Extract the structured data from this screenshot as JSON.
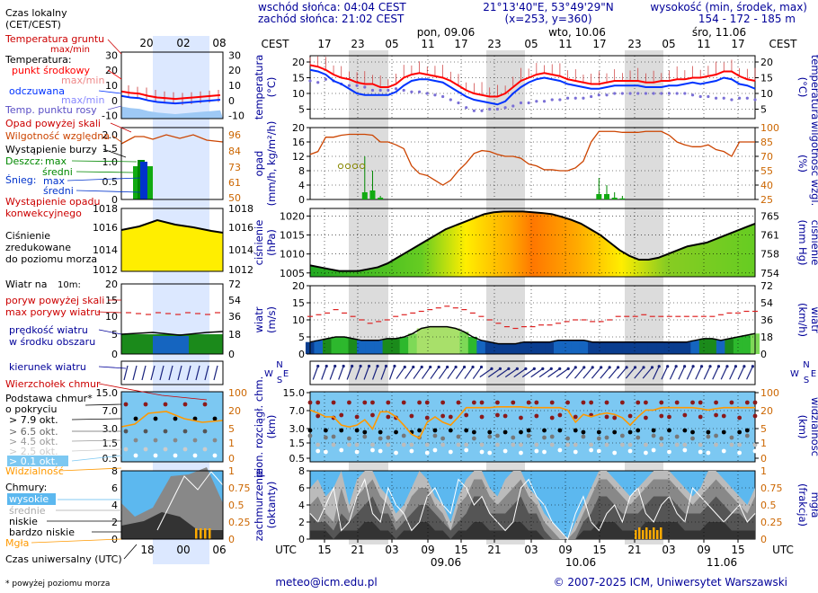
{
  "header": {
    "sunrise": "wschód słońca: 04:04 CEST",
    "sunset": "zachód słońca: 21:02 CEST",
    "coords": "21°13'40\"E, 53°49'29\"N",
    "grid": "(x=253, y=360)",
    "elevation_title": "wysokość (min, środek, max)",
    "elevation_values": "154 - 172 - 185 m",
    "days": [
      "pon, 09.06",
      "wto, 10.06",
      "śro, 11.06"
    ],
    "cest_label": "CEST",
    "utc_label": "UTC",
    "cest_hours": [
      "17",
      "23",
      "05",
      "11",
      "17",
      "23",
      "05",
      "11",
      "17",
      "23",
      "05",
      "11",
      "17"
    ],
    "utc_hours": [
      "15",
      "21",
      "03",
      "09",
      "15",
      "21",
      "03",
      "09",
      "15",
      "21",
      "03",
      "09",
      "15"
    ],
    "utc_dates": [
      "09.06",
      "10.06",
      "11.06"
    ]
  },
  "legend": {
    "local_time": "Czas lokalny",
    "local_time_sub": "(CET/CEST)",
    "local_hours": [
      "20",
      "02",
      "08"
    ],
    "utc_hours": [
      "18",
      "00",
      "06"
    ],
    "ground_temp": "Temperatura gruntu",
    "ground_temp_sub": "max/min",
    "temperature": "Temperatura:",
    "center_point": "punkt środkowy",
    "max_min_1": "max/min",
    "perceived": "odczuwana",
    "max_min_2": "max/min",
    "dew_point": "Temp. punktu rosy",
    "precip_scale": "Opad powyżej skali",
    "humidity": "Wilgotność względna",
    "storm": "Wystąpienie burzy",
    "rain": "Deszcz:",
    "rain_max": "max",
    "rain_mid": "średni",
    "snow": "Śnieg:",
    "snow_max": "max",
    "snow_mid": "średni",
    "precip_occurrence": "Wystąpienie opadu",
    "precip_occurrence2": "konwekcyjnego",
    "pressure1": "Ciśnienie",
    "pressure2": "zredukowane",
    "pressure3": "do poziomu morza",
    "wind": "Wiatr na",
    "wind_height": "10m:",
    "gusts_scale": "poryw powyżej skali",
    "gusts": "max porywy wiatru",
    "wind_speed": "prędkość wiatru",
    "wind_speed2": "w środku obszaru",
    "wind_dir": "kierunek wiatru",
    "cloud_top": "Wierzchołek chmur",
    "cloud_base": "Podstawa chmur*",
    "cloud_base2": "o pokryciu",
    "oct79": "> 7.9 okt.",
    "oct65": "> 6.5 okt.",
    "oct45": "> 4.5 okt.",
    "oct25": "> 2.5 okt.",
    "oct01": "> 0.1 okt.",
    "visibility": "Widzialność",
    "clouds": "Chmury:",
    "high": "wysokie",
    "mid": "średnie",
    "low": "niskie",
    "vlow": "bardzo niskie",
    "fog": "Mgła",
    "utc_time": "Czas uniwersalny (UTC)",
    "footnote": "* powyżej poziomu morza"
  },
  "axis_labels": {
    "temp_l": "temperatura",
    "temp_lu": "(°C)",
    "temp_r": "(°C)",
    "temp_ru": "temperatura",
    "precip_l": "opad",
    "precip_lu": "(mm/h, kg/m²/h)",
    "precip_r": "(%)",
    "precip_ru": "wilgotność wzgl.",
    "press_l": "ciśnienie",
    "press_lu": "(hPa)",
    "press_r": "(mm Hg)",
    "press_ru": "ciśnienie",
    "wind_l": "wiatr",
    "wind_lu": "(m/s)",
    "wind_r": "(km/h)",
    "wind_ru": "wiatr",
    "cbase_l": "pion. rozciągł. chm.",
    "cbase_lu": "(km)",
    "cbase_r": "(km)",
    "cbase_ru": "widzialność",
    "cloud_l": "zachmurzenie",
    "cloud_lu": "(oktanty)",
    "cloud_r": "(frakcja)",
    "cloud_ru": "mgła",
    "dir_n": "N",
    "dir_w": "W",
    "dir_s": "S",
    "dir_e": "E"
  },
  "footer": {
    "email": "meteo@icm.edu.pl",
    "copyright": "© 2007-2025 ICM, Uniwersytet Warszawski"
  },
  "colors": {
    "axis_blue": "#000099",
    "temp_red": "#ff0000",
    "perceived_blue": "#0033ff",
    "humidity": "#cc4400",
    "orange_axis": "#cc6600",
    "night": "#dcdcdc",
    "sky": "#6ec6ff"
  },
  "chart_data": [
    {
      "type": "line",
      "title": "temperatura",
      "ylim": [
        2,
        22
      ],
      "y_ticks_left": [
        5,
        10,
        15,
        20
      ],
      "y_ticks_right": [
        5,
        10,
        15,
        20
      ],
      "series": [
        {
          "name": "punkt środkowy",
          "values": [
            19,
            18.5,
            17.5,
            16,
            15,
            14.5,
            13.5,
            13,
            13,
            12,
            12,
            13,
            15,
            16,
            16.5,
            16,
            15.5,
            15,
            14,
            12.5,
            11,
            10,
            9.5,
            9,
            9,
            10,
            12,
            14,
            15,
            16,
            16.5,
            16,
            15.5,
            14.5,
            14,
            13.5,
            13,
            13,
            13.5,
            14,
            14,
            14,
            14,
            13.5,
            13.5,
            14,
            14,
            14.5,
            14.5,
            15,
            15,
            15.5,
            16,
            17,
            17,
            15.5,
            14.5,
            14
          ]
        },
        {
          "name": "odczuwana",
          "values": [
            17.5,
            17,
            16,
            14,
            13,
            11.5,
            10,
            9.5,
            9.5,
            9.5,
            9.5,
            10.5,
            12.5,
            14,
            14.5,
            14.5,
            14,
            13.5,
            12,
            10.5,
            9,
            8,
            7.5,
            7,
            6.5,
            7.5,
            10,
            12,
            13.5,
            14.5,
            15,
            14.5,
            14,
            13,
            12.5,
            12,
            11.5,
            11.5,
            12,
            12.5,
            12.5,
            12.5,
            12.5,
            12,
            12,
            12,
            12.5,
            12.5,
            13,
            13.5,
            13,
            13.5,
            14,
            15,
            14.5,
            13,
            12.5,
            11.5
          ]
        },
        {
          "name": "Temp. punktu rosy",
          "values": [
            14,
            13.5,
            14.5,
            14,
            13,
            12.5,
            12.5,
            12,
            11,
            11,
            11,
            11.5,
            11,
            10.5,
            10.5,
            10,
            9.5,
            9,
            8,
            7,
            5.5,
            4.5,
            4.5,
            5,
            5,
            5.5,
            6,
            7,
            7,
            7.5,
            7.5,
            8,
            8,
            8.5,
            8.5,
            8.5,
            9,
            9.5,
            9.5,
            10,
            10,
            10,
            10,
            10,
            10,
            10,
            10,
            10,
            10,
            9.5,
            9,
            9,
            8.5,
            8.5,
            8,
            8.5,
            8.5,
            8
          ]
        }
      ]
    },
    {
      "type": "bar",
      "title": "opad",
      "ylim": [
        0,
        20
      ],
      "y_ticks_left": [
        0,
        4,
        8,
        12,
        16,
        20
      ],
      "y_ticks_right": [
        25,
        40,
        55,
        70,
        85,
        100
      ],
      "series": [
        {
          "name": "Wilgotność względna",
          "values": [
            72,
            75,
            90,
            90,
            92,
            93,
            93,
            93,
            92,
            85,
            85,
            82,
            78,
            60,
            52,
            50,
            45,
            40,
            45,
            55,
            63,
            73,
            76,
            75,
            72,
            70,
            70,
            68,
            62,
            60,
            56,
            56,
            55,
            55,
            58,
            65,
            85,
            96,
            96,
            96,
            95,
            95,
            95,
            96,
            96,
            96,
            92,
            85,
            82,
            80,
            80,
            82,
            77,
            75,
            70,
            85,
            85,
            85
          ]
        },
        {
          "name": "Deszcz max",
          "values": [
            0,
            0,
            0,
            0,
            0,
            0,
            0,
            12,
            8,
            1,
            0,
            0,
            0,
            0,
            0,
            0,
            0,
            0,
            0,
            0,
            0,
            0,
            0,
            0,
            0,
            0,
            0,
            0,
            0,
            0,
            0,
            0,
            0,
            0,
            0,
            0,
            0,
            6,
            4,
            2,
            1,
            0,
            0,
            0,
            0,
            0,
            0,
            0,
            0,
            0,
            0,
            0,
            0,
            0,
            0,
            0,
            0,
            0
          ]
        },
        {
          "name": "Deszcz średni",
          "values": [
            0,
            0,
            0,
            0,
            0,
            0,
            0,
            2,
            2.5,
            0.5,
            0,
            0,
            0,
            0,
            0,
            0,
            0,
            0,
            0,
            0,
            0,
            0,
            0,
            0,
            0,
            0,
            0,
            0,
            0,
            0,
            0,
            0,
            0,
            0,
            0,
            0,
            0,
            1.5,
            1.5,
            0.5,
            0.3,
            0,
            0,
            0,
            0,
            0,
            0,
            0,
            0,
            0,
            0,
            0,
            0,
            0,
            0,
            0,
            0,
            0
          ]
        }
      ]
    },
    {
      "type": "area",
      "title": "ciśnienie",
      "ylim": [
        1004,
        1022
      ],
      "y_ticks_left": [
        1005,
        1010,
        1015,
        1020
      ],
      "y_ticks_right": [
        754,
        758,
        761,
        765
      ],
      "values": [
        1007,
        1006.5,
        1006,
        1005.5,
        1005.5,
        1005.5,
        1006,
        1006.5,
        1007.5,
        1009,
        1010.5,
        1012,
        1013.5,
        1015,
        1016.5,
        1017.5,
        1018.5,
        1019.5,
        1020.5,
        1021,
        1021.2,
        1021.2,
        1021.2,
        1021,
        1020.8,
        1020.5,
        1019.8,
        1019,
        1018,
        1016.5,
        1015,
        1013,
        1011,
        1009.5,
        1008.5,
        1008.5,
        1009,
        1010,
        1011,
        1012,
        1012.5,
        1013,
        1014,
        1015,
        1016,
        1017,
        1018
      ]
    },
    {
      "type": "area",
      "title": "wiatr",
      "ylim": [
        0,
        20
      ],
      "y_ticks_left": [
        0,
        5,
        10,
        15,
        20
      ],
      "y_ticks_right": [
        0,
        18,
        36,
        54,
        72
      ],
      "series": [
        {
          "name": "prędkość wiatru",
          "values": [
            3.5,
            4,
            4.5,
            5,
            5,
            4.5,
            4,
            4,
            4,
            4.5,
            4.5,
            5,
            6,
            7.5,
            8,
            8,
            8,
            7.5,
            6.5,
            5,
            4,
            3.5,
            3,
            3,
            3,
            3.5,
            3.5,
            3.5,
            3.5,
            4,
            4,
            4,
            4,
            3.5,
            3.5,
            3.5,
            3.5,
            3.5,
            3.5,
            3.5,
            3.5,
            3.5,
            3.5,
            3.5,
            3.5,
            4,
            4.5,
            4.5,
            4,
            4.5,
            5,
            5.5,
            6
          ]
        },
        {
          "name": "max porywy wiatru",
          "values": [
            11,
            11.5,
            12,
            13,
            12,
            11,
            10,
            9,
            9.5,
            10,
            11,
            11.5,
            12,
            12.5,
            13,
            13.5,
            14,
            13.5,
            13,
            12,
            11,
            10,
            9,
            8,
            7.5,
            8,
            8,
            8.5,
            8.5,
            9,
            9.5,
            10,
            10,
            9.5,
            9.5,
            10,
            11,
            11,
            11,
            11.5,
            11,
            11,
            11,
            11,
            11,
            11,
            11,
            11,
            11.5,
            12,
            12,
            12.5,
            12.5
          ]
        }
      ]
    },
    {
      "type": "line",
      "title": "pion. rozciągł. chm.",
      "ylim": [
        0,
        15
      ],
      "y_ticks_left": [
        "0.5",
        "1.5",
        "3.0",
        "7.0",
        "15.0"
      ],
      "y_ticks_right": [
        "0",
        "1",
        "5",
        "20",
        "100"
      ],
      "series": [
        {
          "name": "Widzialność",
          "values": [
            25,
            20,
            15,
            15,
            8,
            7,
            8,
            12,
            6,
            22,
            22,
            15,
            8,
            4,
            3,
            10,
            15,
            10,
            8,
            15,
            30,
            30,
            30,
            30,
            32,
            32,
            32,
            32,
            30,
            30,
            30,
            30,
            30,
            25,
            10,
            18,
            15,
            18,
            20,
            18,
            14,
            8,
            15,
            25,
            25,
            30,
            30,
            30,
            30,
            30,
            28,
            25,
            28,
            30,
            30,
            30,
            30,
            30
          ]
        }
      ]
    },
    {
      "type": "area",
      "title": "zachmurzenie",
      "ylim": [
        0,
        8
      ],
      "y_ticks_left": [
        0,
        2,
        4,
        6,
        8
      ],
      "y_ticks_right": [
        "0",
        "0.25",
        "0.5",
        "0.75",
        "1"
      ]
    }
  ]
}
